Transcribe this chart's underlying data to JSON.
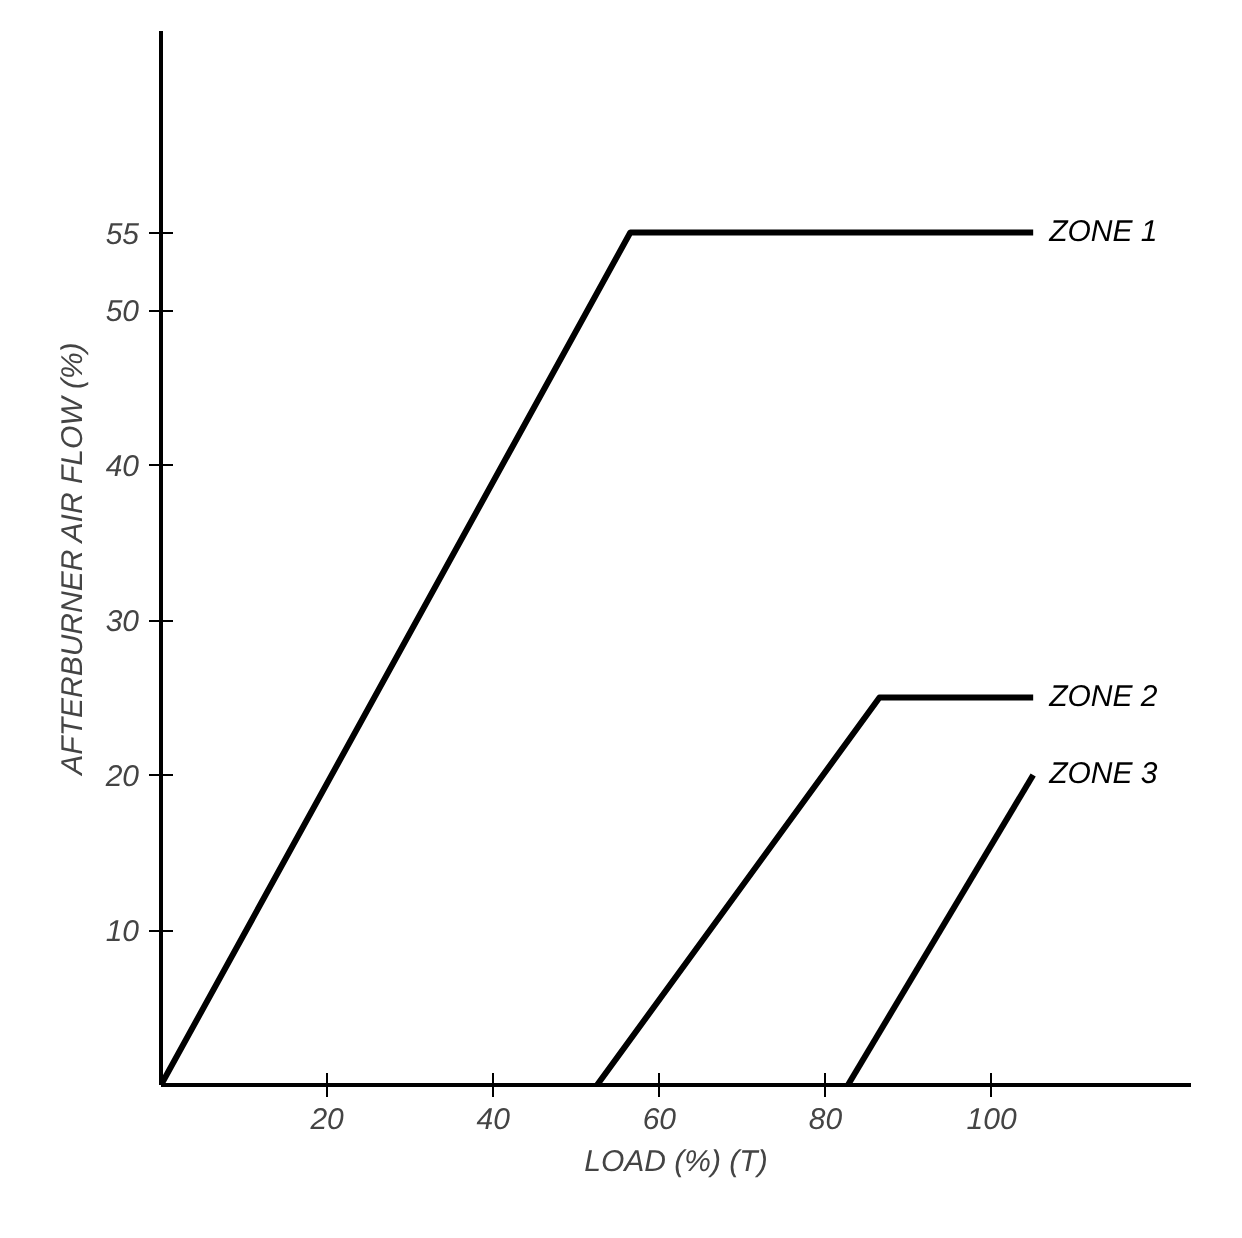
{
  "chart_data": {
    "type": "line",
    "xlabel": "LOAD (%) (T)",
    "ylabel": "AFTERBURNER AIR FLOW (%)",
    "xlim": [
      0,
      124
    ],
    "ylim": [
      0,
      68
    ],
    "xticks": [
      20,
      40,
      60,
      80,
      100
    ],
    "yticks": [
      10,
      20,
      30,
      40,
      50,
      55
    ],
    "grid": false,
    "line_style": "solid",
    "marker": "none",
    "series": [
      {
        "name": "ZONE 1",
        "color": "#000000",
        "x": [
          0,
          56.5,
          105
        ],
        "values": [
          0,
          55,
          55
        ]
      },
      {
        "name": "ZONE 2",
        "color": "#000000",
        "x": [
          52.5,
          86.5,
          105
        ],
        "values": [
          0,
          25,
          25
        ]
      },
      {
        "name": "ZONE 3",
        "color": "#000000",
        "x": [
          82.7,
          105
        ],
        "values": [
          0,
          20
        ]
      }
    ]
  }
}
